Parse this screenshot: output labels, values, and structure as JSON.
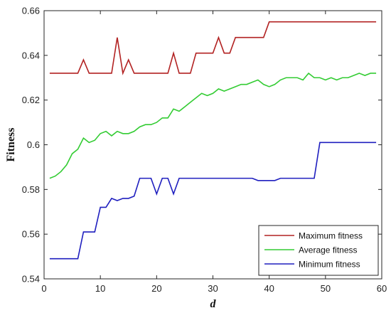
{
  "chart_data": {
    "type": "line",
    "title": "",
    "xlabel": "d",
    "ylabel": "Fitness",
    "xlim": [
      0,
      60
    ],
    "ylim": [
      0.54,
      0.66
    ],
    "x_ticks": [
      0,
      10,
      20,
      30,
      40,
      50,
      60
    ],
    "y_ticks": [
      0.54,
      0.56,
      0.58,
      0.6,
      0.62,
      0.64,
      0.66
    ],
    "y_tick_labels": [
      "0.54",
      "0.56",
      "0.58",
      "0.6",
      "0.62",
      "0.64",
      "0.66"
    ],
    "grid": false,
    "legend_position": "bottom-right",
    "x": [
      1,
      2,
      3,
      4,
      5,
      6,
      7,
      8,
      9,
      10,
      11,
      12,
      13,
      14,
      15,
      16,
      17,
      18,
      19,
      20,
      21,
      22,
      23,
      24,
      25,
      26,
      27,
      28,
      29,
      30,
      31,
      32,
      33,
      34,
      35,
      36,
      37,
      38,
      39,
      40,
      41,
      42,
      43,
      44,
      45,
      46,
      47,
      48,
      49,
      50,
      51,
      52,
      53,
      54,
      55,
      56,
      57,
      58,
      59
    ],
    "series": [
      {
        "name": "Maximum fitness",
        "color": "#b22222",
        "values": [
          0.632,
          0.632,
          0.632,
          0.632,
          0.632,
          0.632,
          0.638,
          0.632,
          0.632,
          0.632,
          0.632,
          0.632,
          0.648,
          0.632,
          0.638,
          0.632,
          0.632,
          0.632,
          0.632,
          0.632,
          0.632,
          0.632,
          0.641,
          0.632,
          0.632,
          0.632,
          0.641,
          0.641,
          0.641,
          0.641,
          0.648,
          0.641,
          0.641,
          0.648,
          0.648,
          0.648,
          0.648,
          0.648,
          0.648,
          0.655,
          0.655,
          0.655,
          0.655,
          0.655,
          0.655,
          0.655,
          0.655,
          0.655,
          0.655,
          0.655,
          0.655,
          0.655,
          0.655,
          0.655,
          0.655,
          0.655,
          0.655,
          0.655,
          0.655
        ]
      },
      {
        "name": "Average fitness",
        "color": "#33cc33",
        "values": [
          0.585,
          0.586,
          0.588,
          0.591,
          0.596,
          0.598,
          0.603,
          0.601,
          0.602,
          0.605,
          0.606,
          0.604,
          0.606,
          0.605,
          0.605,
          0.606,
          0.608,
          0.609,
          0.609,
          0.61,
          0.612,
          0.612,
          0.616,
          0.615,
          0.617,
          0.619,
          0.621,
          0.623,
          0.622,
          0.623,
          0.625,
          0.624,
          0.625,
          0.626,
          0.627,
          0.627,
          0.628,
          0.629,
          0.627,
          0.626,
          0.627,
          0.629,
          0.63,
          0.63,
          0.63,
          0.629,
          0.632,
          0.63,
          0.63,
          0.629,
          0.63,
          0.629,
          0.63,
          0.63,
          0.631,
          0.632,
          0.631,
          0.632,
          0.632
        ]
      },
      {
        "name": "Minimum fitness",
        "color": "#1f1fbf",
        "values": [
          0.549,
          0.549,
          0.549,
          0.549,
          0.549,
          0.549,
          0.561,
          0.561,
          0.561,
          0.572,
          0.572,
          0.576,
          0.575,
          0.576,
          0.576,
          0.577,
          0.585,
          0.585,
          0.585,
          0.578,
          0.585,
          0.585,
          0.578,
          0.585,
          0.585,
          0.585,
          0.585,
          0.585,
          0.585,
          0.585,
          0.585,
          0.585,
          0.585,
          0.585,
          0.585,
          0.585,
          0.585,
          0.584,
          0.584,
          0.584,
          0.584,
          0.585,
          0.585,
          0.585,
          0.585,
          0.585,
          0.585,
          0.585,
          0.601,
          0.601,
          0.601,
          0.601,
          0.601,
          0.601,
          0.601,
          0.601,
          0.601,
          0.601,
          0.601
        ]
      }
    ]
  }
}
